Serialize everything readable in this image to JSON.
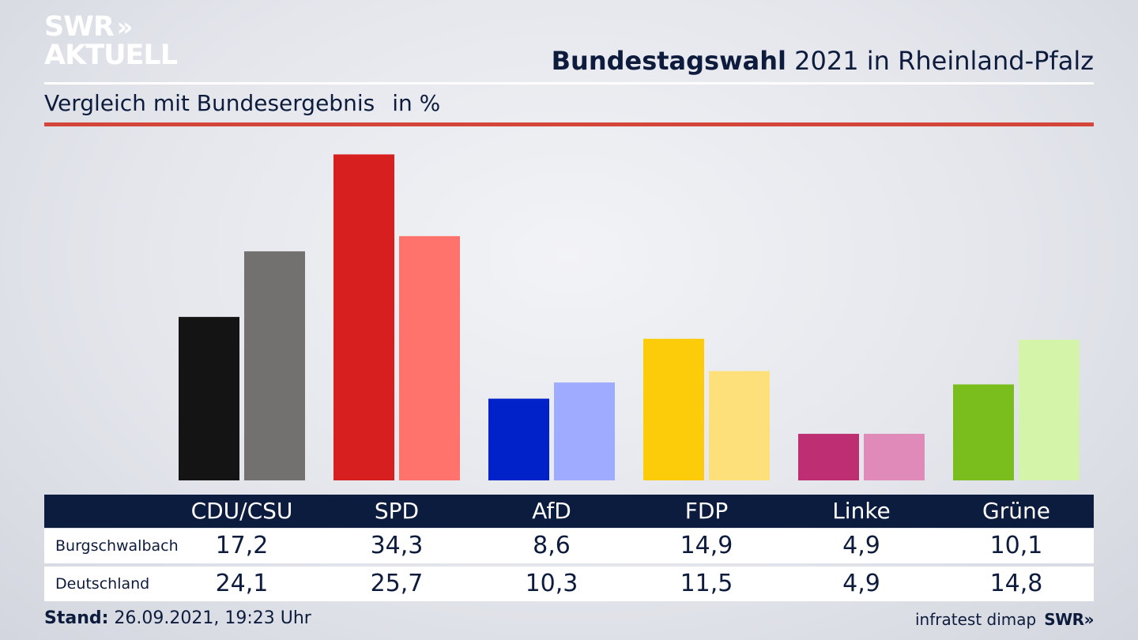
{
  "brand": {
    "logo_line1": "SWR",
    "logo_chevrons": "»",
    "logo_line2": "AKTUELL"
  },
  "header": {
    "title_bold": "Bundestagswahl",
    "title_rest": " 2021 in Rheinland-Pfalz",
    "subtitle": "Vergleich mit Bundesergebnis",
    "unit": "in %"
  },
  "colors": {
    "navy": "#0c1c3f",
    "accent_red": "#d4463a"
  },
  "chart_data": {
    "type": "bar",
    "title": "Bundestagswahl 2021 in Rheinland-Pfalz",
    "subtitle": "Vergleich mit Bundesergebnis",
    "unit": "in %",
    "categories": [
      "CDU/CSU",
      "SPD",
      "AfD",
      "FDP",
      "Linke",
      "Grüne"
    ],
    "series": [
      {
        "name": "Burgschwalbach",
        "values": [
          17.2,
          34.3,
          8.6,
          14.9,
          4.9,
          10.1
        ],
        "labels": [
          "17,2",
          "34,3",
          "8,6",
          "14,9",
          "4,9",
          "10,1"
        ],
        "colors": [
          "#141414",
          "#d71f1f",
          "#0022c8",
          "#fccc0a",
          "#be2e73",
          "#7abe1e"
        ]
      },
      {
        "name": "Deutschland",
        "values": [
          24.1,
          25.7,
          10.3,
          11.5,
          4.9,
          14.8
        ],
        "labels": [
          "24,1",
          "25,7",
          "10,3",
          "11,5",
          "4,9",
          "14,8"
        ],
        "colors": [
          "#737170",
          "#ff736c",
          "#9fabff",
          "#fde07a",
          "#df8ab8",
          "#d3f4a9"
        ]
      }
    ],
    "ylim": [
      0,
      35
    ],
    "grid": false,
    "legend": "table-below"
  },
  "footer": {
    "stand_label": "Stand:",
    "stand_value": " 26.09.2021, 19:23 Uhr",
    "source": "infratest dimap",
    "brand": "SWR»"
  }
}
